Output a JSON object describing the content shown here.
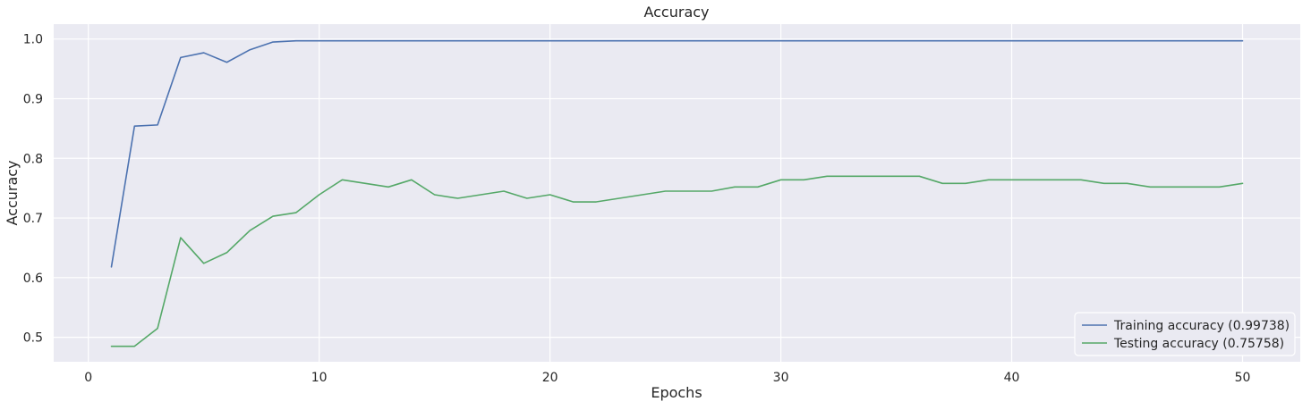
{
  "chart_data": {
    "type": "line",
    "title": "Accuracy",
    "xlabel": "Epochs",
    "ylabel": "Accuracy",
    "xlim": [
      -1.5,
      52.5
    ],
    "ylim": [
      0.459,
      1.025
    ],
    "xticks": [
      0,
      10,
      20,
      30,
      40,
      50
    ],
    "yticks": [
      0.5,
      0.6,
      0.7,
      0.8,
      0.9,
      1.0
    ],
    "xtick_labels": [
      "0",
      "10",
      "20",
      "30",
      "40",
      "50"
    ],
    "ytick_labels": [
      "0.5",
      "0.6",
      "0.7",
      "0.8",
      "0.9",
      "1.0"
    ],
    "grid": true,
    "legend_position": "lower-right",
    "x": [
      1,
      2,
      3,
      4,
      5,
      6,
      7,
      8,
      9,
      10,
      11,
      12,
      13,
      14,
      15,
      16,
      17,
      18,
      19,
      20,
      21,
      22,
      23,
      24,
      25,
      26,
      27,
      28,
      29,
      30,
      31,
      32,
      33,
      34,
      35,
      36,
      37,
      38,
      39,
      40,
      41,
      42,
      43,
      44,
      45,
      46,
      47,
      48,
      49,
      50
    ],
    "series": [
      {
        "name": "Training accuracy (0.99738)",
        "color": "#4c72b0",
        "values": [
          0.618,
          0.854,
          0.856,
          0.969,
          0.977,
          0.961,
          0.982,
          0.995,
          0.997,
          0.997,
          0.997,
          0.997,
          0.997,
          0.997,
          0.997,
          0.997,
          0.997,
          0.997,
          0.997,
          0.997,
          0.997,
          0.997,
          0.997,
          0.997,
          0.997,
          0.997,
          0.997,
          0.997,
          0.997,
          0.997,
          0.997,
          0.997,
          0.997,
          0.997,
          0.997,
          0.997,
          0.997,
          0.997,
          0.997,
          0.997,
          0.997,
          0.997,
          0.997,
          0.997,
          0.997,
          0.997,
          0.997,
          0.997,
          0.997,
          0.997
        ]
      },
      {
        "name": "Testing accuracy (0.75758)",
        "color": "#55a868",
        "values": [
          0.485,
          0.485,
          0.515,
          0.667,
          0.624,
          0.642,
          0.679,
          0.703,
          0.709,
          0.739,
          0.764,
          0.758,
          0.752,
          0.764,
          0.739,
          0.733,
          0.739,
          0.745,
          0.733,
          0.739,
          0.727,
          0.727,
          0.733,
          0.739,
          0.745,
          0.745,
          0.745,
          0.752,
          0.752,
          0.764,
          0.764,
          0.77,
          0.77,
          0.77,
          0.77,
          0.77,
          0.758,
          0.758,
          0.764,
          0.764,
          0.764,
          0.764,
          0.764,
          0.758,
          0.758,
          0.752,
          0.752,
          0.752,
          0.752,
          0.758
        ]
      }
    ]
  }
}
